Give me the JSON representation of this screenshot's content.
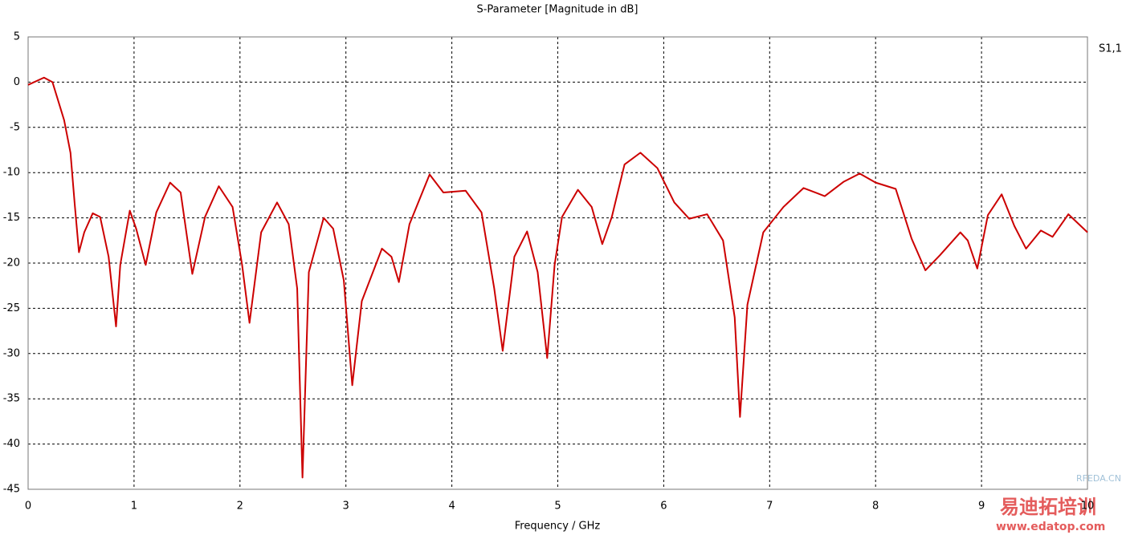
{
  "chart_data": {
    "type": "line",
    "title": "S-Parameter [Magnitude in dB]",
    "x_label": "Frequency / GHz",
    "x": [
      0,
      0.15,
      0.23,
      0.34,
      0.4,
      0.44,
      0.48,
      0.53,
      0.61,
      0.68,
      0.76,
      0.83,
      0.87,
      0.96,
      1.02,
      1.11,
      1.21,
      1.34,
      1.44,
      1.55,
      1.67,
      1.8,
      1.93,
      2.02,
      2.09,
      2.2,
      2.35,
      2.46,
      2.54,
      2.59,
      2.65,
      2.79,
      2.88,
      2.98,
      3.06,
      3.15,
      3.34,
      3.43,
      3.5,
      3.6,
      3.79,
      3.92,
      4.13,
      4.28,
      4.4,
      4.48,
      4.59,
      4.71,
      4.81,
      4.9,
      4.97,
      5.04,
      5.19,
      5.32,
      5.42,
      5.51,
      5.63,
      5.78,
      5.94,
      6.1,
      6.24,
      6.41,
      6.56,
      6.67,
      6.72,
      6.79,
      6.94,
      7.13,
      7.32,
      7.52,
      7.7,
      7.85,
      8.0,
      8.19,
      8.34,
      8.47,
      8.61,
      8.8,
      8.87,
      8.96,
      9.06,
      9.19,
      9.31,
      9.42,
      9.56,
      9.67,
      9.82,
      10
    ],
    "series": [
      {
        "name": "S1,1",
        "color": "#cc0000",
        "values": [
          -0.3,
          0.5,
          0,
          -4.2,
          -7.8,
          -13.5,
          -18.8,
          -16.6,
          -14.5,
          -14.9,
          -19.3,
          -27,
          -20.2,
          -14.2,
          -16.2,
          -20.2,
          -14.4,
          -11.1,
          -12.2,
          -21.2,
          -14.9,
          -11.5,
          -13.8,
          -20.2,
          -26.6,
          -16.6,
          -13.3,
          -15.7,
          -22.8,
          -43.7,
          -21,
          -15,
          -16.2,
          -21.9,
          -33.5,
          -24.2,
          -18.4,
          -19.3,
          -22.1,
          -15.7,
          -10.2,
          -12.2,
          -12,
          -14.4,
          -22.8,
          -29.7,
          -19.3,
          -16.5,
          -21,
          -30.5,
          -20.2,
          -14.9,
          -11.9,
          -13.8,
          -17.9,
          -14.9,
          -9.1,
          -7.8,
          -9.5,
          -13.3,
          -15.1,
          -14.6,
          -17.5,
          -26,
          -37,
          -24.6,
          -16.6,
          -13.8,
          -11.7,
          -12.6,
          -11,
          -10.1,
          -11.1,
          -11.8,
          -17.3,
          -20.8,
          -19.1,
          -16.6,
          -17.5,
          -20.6,
          -14.7,
          -12.4,
          -15.9,
          -18.4,
          -16.4,
          -17.1,
          -14.6,
          -16.6
        ]
      }
    ],
    "xlim": [
      0,
      10
    ],
    "xticks": [
      0,
      1,
      2,
      3,
      4,
      5,
      6,
      7,
      8,
      9,
      10
    ],
    "ylim": [
      -45,
      5
    ],
    "yticks": [
      -45,
      -40,
      -35,
      -30,
      -25,
      -20,
      -15,
      -10,
      -5,
      0,
      5
    ],
    "grid": true,
    "legend_position": "top-right"
  },
  "watermark": [
    "RFEDA.CN",
    "易迪拓培训",
    "www.edatop.com"
  ]
}
